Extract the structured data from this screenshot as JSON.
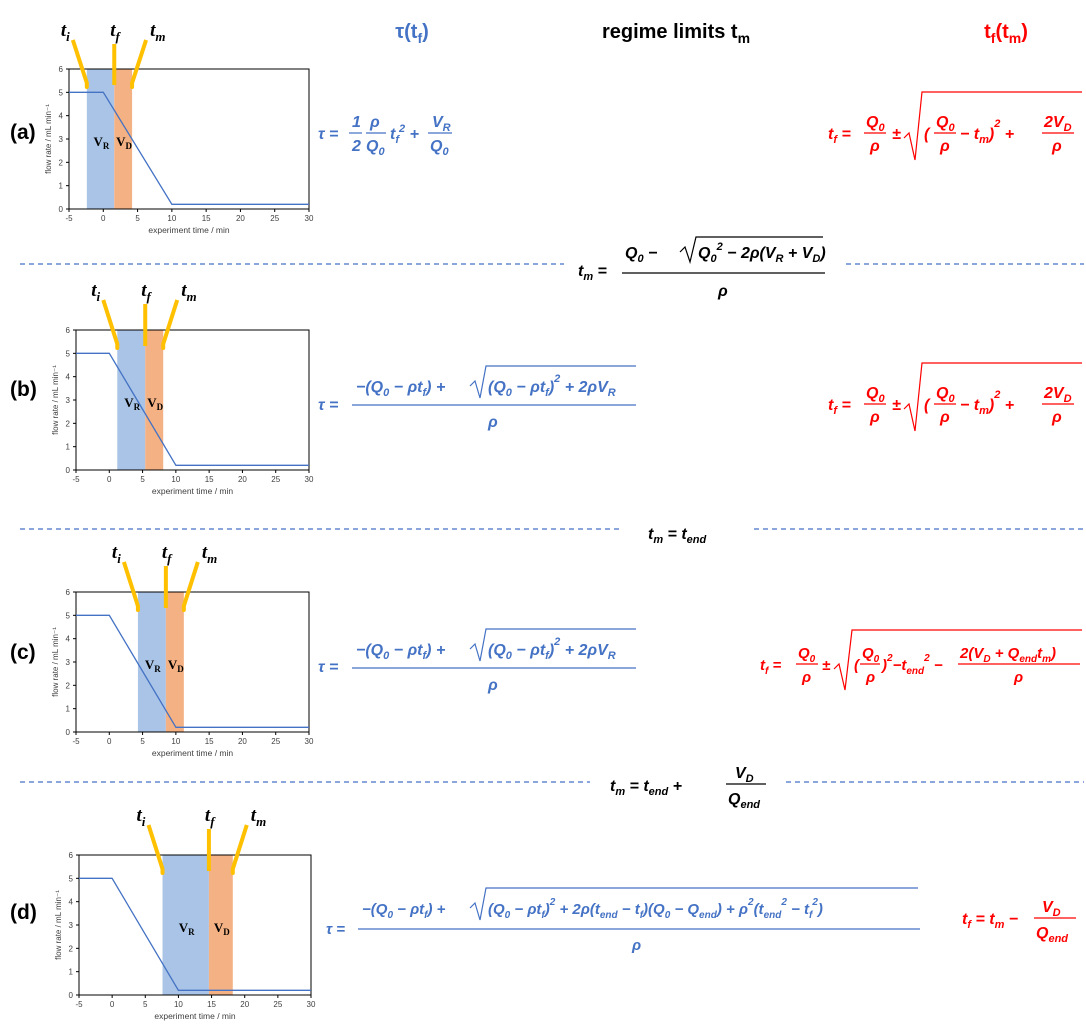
{
  "header": {
    "tau_heading": "τ(t_f)",
    "regime_heading": "regime limits t_m",
    "tf_heading": "t_f(t_m)"
  },
  "colors": {
    "blue": "#4472C4",
    "red": "#FF0000",
    "band_r": "#A9C4E6",
    "band_d": "#F4B183",
    "marker": "#FFC000",
    "axis_text": "#404040"
  },
  "panel_labels": [
    "(a)",
    "(b)",
    "(c)",
    "(d)"
  ],
  "marker_labels": {
    "ti": "t",
    "ti_sub": "i",
    "tf": "t",
    "tf_sub": "f",
    "tm": "t",
    "tm_sub": "m"
  },
  "band_labels": {
    "vr": "V",
    "vr_sub": "R",
    "vd": "V",
    "vd_sub": "D"
  },
  "axis_text": {
    "xlabel": "experiment time / min",
    "ylabel": "flow rate / mL min⁻¹"
  },
  "chart_data": [
    {
      "type": "line",
      "panel": "(a)",
      "x": [
        -5,
        0,
        10,
        30
      ],
      "y": [
        5,
        5,
        0.2,
        0.2
      ],
      "xlim": [
        -5,
        30
      ],
      "ylim": [
        0,
        6
      ],
      "xticks": [
        -5,
        0,
        5,
        10,
        15,
        20,
        25,
        30
      ],
      "yticks": [
        0,
        1,
        2,
        3,
        4,
        5,
        6
      ],
      "xlabel": "experiment time / min",
      "ylabel": "flow rate / mL min⁻¹",
      "regions": [
        {
          "name": "V_R",
          "from": -2.4,
          "to": 1.6
        },
        {
          "name": "V_D",
          "from": 1.6,
          "to": 4.2
        }
      ]
    },
    {
      "type": "line",
      "panel": "(b)",
      "x": [
        -5,
        0,
        10,
        30
      ],
      "y": [
        5,
        5,
        0.2,
        0.2
      ],
      "xlim": [
        -5,
        30
      ],
      "ylim": [
        0,
        6
      ],
      "xticks": [
        -5,
        0,
        5,
        10,
        15,
        20,
        25,
        30
      ],
      "yticks": [
        0,
        1,
        2,
        3,
        4,
        5,
        6
      ],
      "xlabel": "experiment time / min",
      "ylabel": "flow rate / mL min⁻¹",
      "regions": [
        {
          "name": "V_R",
          "from": 1.2,
          "to": 5.4
        },
        {
          "name": "V_D",
          "from": 5.4,
          "to": 8.1
        }
      ]
    },
    {
      "type": "line",
      "panel": "(c)",
      "x": [
        -5,
        0,
        10,
        30
      ],
      "y": [
        5,
        5,
        0.2,
        0.2
      ],
      "xlim": [
        -5,
        30
      ],
      "ylim": [
        0,
        6
      ],
      "xticks": [
        -5,
        0,
        5,
        10,
        15,
        20,
        25,
        30
      ],
      "yticks": [
        0,
        1,
        2,
        3,
        4,
        5,
        6
      ],
      "xlabel": "experiment time / min",
      "ylabel": "flow rate / mL min⁻¹",
      "regions": [
        {
          "name": "V_R",
          "from": 4.3,
          "to": 8.5
        },
        {
          "name": "V_D",
          "from": 8.5,
          "to": 11.2
        }
      ]
    },
    {
      "type": "line",
      "panel": "(d)",
      "x": [
        -5,
        0,
        10,
        30
      ],
      "y": [
        5,
        5,
        0.2,
        0.2
      ],
      "xlim": [
        -5,
        30
      ],
      "ylim": [
        0,
        6
      ],
      "xticks": [
        -5,
        0,
        5,
        10,
        15,
        20,
        25,
        30
      ],
      "yticks": [
        0,
        1,
        2,
        3,
        4,
        5,
        6
      ],
      "xlabel": "experiment time / min",
      "ylabel": "flow rate / mL min⁻¹",
      "regions": [
        {
          "name": "V_R",
          "from": 7.6,
          "to": 14.6
        },
        {
          "name": "V_D",
          "from": 14.6,
          "to": 18.2
        }
      ]
    }
  ],
  "equations": {
    "tau": [
      "τ = (1/2)(ρ/Q₀) t_f² + V_R/Q₀",
      "τ = [ −(Q₀ − ρt_f) + √((Q₀ − ρt_f)² + 2ρV_R) ] / ρ",
      "τ = [ −(Q₀ − ρt_f) + √((Q₀ − ρt_f)² + 2ρV_R) ] / ρ",
      "τ = [ −(Q₀ − ρt_f) + √((Q₀ − ρt_f)² + 2ρ(t_end − t_f)(Q₀ − Q_end) + ρ²(t_end² − t_f²)) ] / ρ"
    ],
    "tf": [
      "t_f = Q₀/ρ ± √((Q₀/ρ − t_m)² + 2V_D/ρ)",
      "t_f = Q₀/ρ ± √((Q₀/ρ − t_m)² + 2V_D/ρ)",
      "t_f = Q₀/ρ ± √((Q₀/ρ)² − t_end² − 2(V_D + Q_end t_m)/ρ)",
      "t_f = t_m − V_D/Q_end"
    ],
    "limits": [
      "t_m = [ Q₀ − √(Q₀² − 2ρ(V_R + V_D)) ] / ρ",
      "t_m = t_end",
      "t_m = t_end + V_D/Q_end"
    ]
  }
}
